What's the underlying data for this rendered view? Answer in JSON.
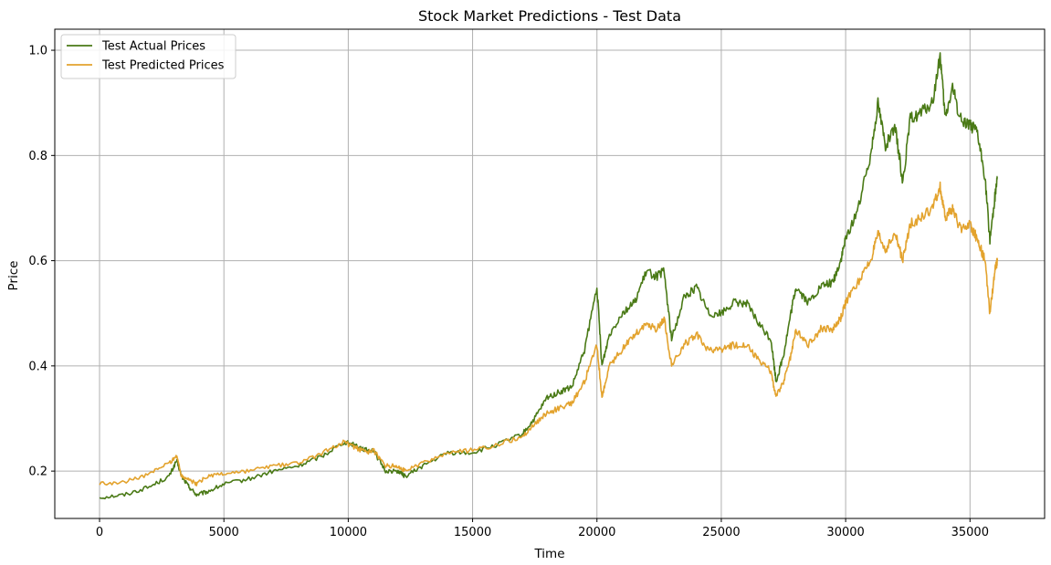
{
  "chart_data": {
    "type": "line",
    "title": "Stock Market Predictions - Test Data",
    "xlabel": "Time",
    "ylabel": "Price",
    "xlim": [
      -1800,
      38000
    ],
    "ylim": [
      0.11,
      1.04
    ],
    "xticks": [
      0,
      5000,
      10000,
      15000,
      20000,
      25000,
      30000,
      35000
    ],
    "yticks": [
      0.2,
      0.4,
      0.6,
      0.8,
      1.0
    ],
    "xtick_labels": [
      "0",
      "5000",
      "10000",
      "15000",
      "20000",
      "25000",
      "30000",
      "35000"
    ],
    "ytick_labels": [
      "0.2",
      "0.4",
      "0.6",
      "0.8",
      "1.0"
    ],
    "grid": true,
    "legend_position": "top-left",
    "series": [
      {
        "name": "Test Actual Prices",
        "color": "#4a7a16",
        "x": [
          0,
          1000,
          2000,
          2800,
          3100,
          3300,
          3600,
          3900,
          4300,
          5000,
          6000,
          7000,
          8000,
          9000,
          9800,
          10300,
          10700,
          11000,
          11500,
          12000,
          12300,
          13000,
          14000,
          15000,
          16000,
          17000,
          17500,
          18000,
          18500,
          19000,
          19500,
          20000,
          20200,
          20500,
          21000,
          21500,
          22000,
          22400,
          22700,
          23000,
          23500,
          24000,
          24500,
          25000,
          25500,
          26000,
          26500,
          27000,
          27200,
          27500,
          27800,
          28000,
          28500,
          29000,
          29500,
          29800,
          30000,
          30500,
          31000,
          31300,
          31600,
          32000,
          32300,
          32600,
          33000,
          33500,
          33800,
          34000,
          34300,
          34600,
          35000,
          35300,
          35600,
          35800,
          36000,
          36100
        ],
        "y": [
          0.15,
          0.155,
          0.17,
          0.19,
          0.22,
          0.19,
          0.17,
          0.155,
          0.16,
          0.175,
          0.185,
          0.2,
          0.21,
          0.23,
          0.255,
          0.25,
          0.24,
          0.24,
          0.2,
          0.2,
          0.19,
          0.21,
          0.235,
          0.235,
          0.25,
          0.27,
          0.3,
          0.34,
          0.35,
          0.36,
          0.43,
          0.55,
          0.4,
          0.46,
          0.5,
          0.52,
          0.58,
          0.57,
          0.58,
          0.45,
          0.53,
          0.55,
          0.5,
          0.5,
          0.52,
          0.52,
          0.48,
          0.45,
          0.37,
          0.42,
          0.5,
          0.55,
          0.52,
          0.55,
          0.56,
          0.6,
          0.64,
          0.7,
          0.8,
          0.9,
          0.82,
          0.85,
          0.75,
          0.87,
          0.88,
          0.9,
          0.99,
          0.87,
          0.93,
          0.87,
          0.86,
          0.84,
          0.76,
          0.64,
          0.72,
          0.76
        ]
      },
      {
        "name": "Test Predicted Prices",
        "color": "#e3a32e",
        "x": [
          0,
          1000,
          2000,
          2800,
          3100,
          3300,
          3600,
          3900,
          4300,
          5000,
          6000,
          7000,
          8000,
          9000,
          9800,
          10300,
          10700,
          11000,
          11500,
          12000,
          12300,
          13000,
          14000,
          15000,
          16000,
          17000,
          17500,
          18000,
          18500,
          19000,
          19500,
          20000,
          20200,
          20500,
          21000,
          21500,
          22000,
          22400,
          22700,
          23000,
          23500,
          24000,
          24500,
          25000,
          25500,
          26000,
          26500,
          27000,
          27200,
          27500,
          27800,
          28000,
          28500,
          29000,
          29500,
          29800,
          30000,
          30500,
          31000,
          31300,
          31600,
          32000,
          32300,
          32600,
          33000,
          33500,
          33800,
          34000,
          34300,
          34600,
          35000,
          35300,
          35600,
          35800,
          36000,
          36100
        ],
        "y": [
          0.175,
          0.18,
          0.195,
          0.215,
          0.23,
          0.19,
          0.185,
          0.175,
          0.19,
          0.195,
          0.2,
          0.21,
          0.215,
          0.235,
          0.255,
          0.245,
          0.235,
          0.24,
          0.21,
          0.21,
          0.2,
          0.215,
          0.235,
          0.24,
          0.25,
          0.265,
          0.29,
          0.31,
          0.32,
          0.33,
          0.37,
          0.44,
          0.34,
          0.4,
          0.43,
          0.46,
          0.48,
          0.47,
          0.49,
          0.4,
          0.44,
          0.46,
          0.43,
          0.43,
          0.44,
          0.44,
          0.41,
          0.39,
          0.34,
          0.37,
          0.42,
          0.47,
          0.44,
          0.47,
          0.47,
          0.49,
          0.52,
          0.56,
          0.6,
          0.65,
          0.62,
          0.65,
          0.6,
          0.67,
          0.68,
          0.7,
          0.74,
          0.68,
          0.7,
          0.66,
          0.67,
          0.64,
          0.6,
          0.5,
          0.58,
          0.6
        ]
      }
    ]
  }
}
